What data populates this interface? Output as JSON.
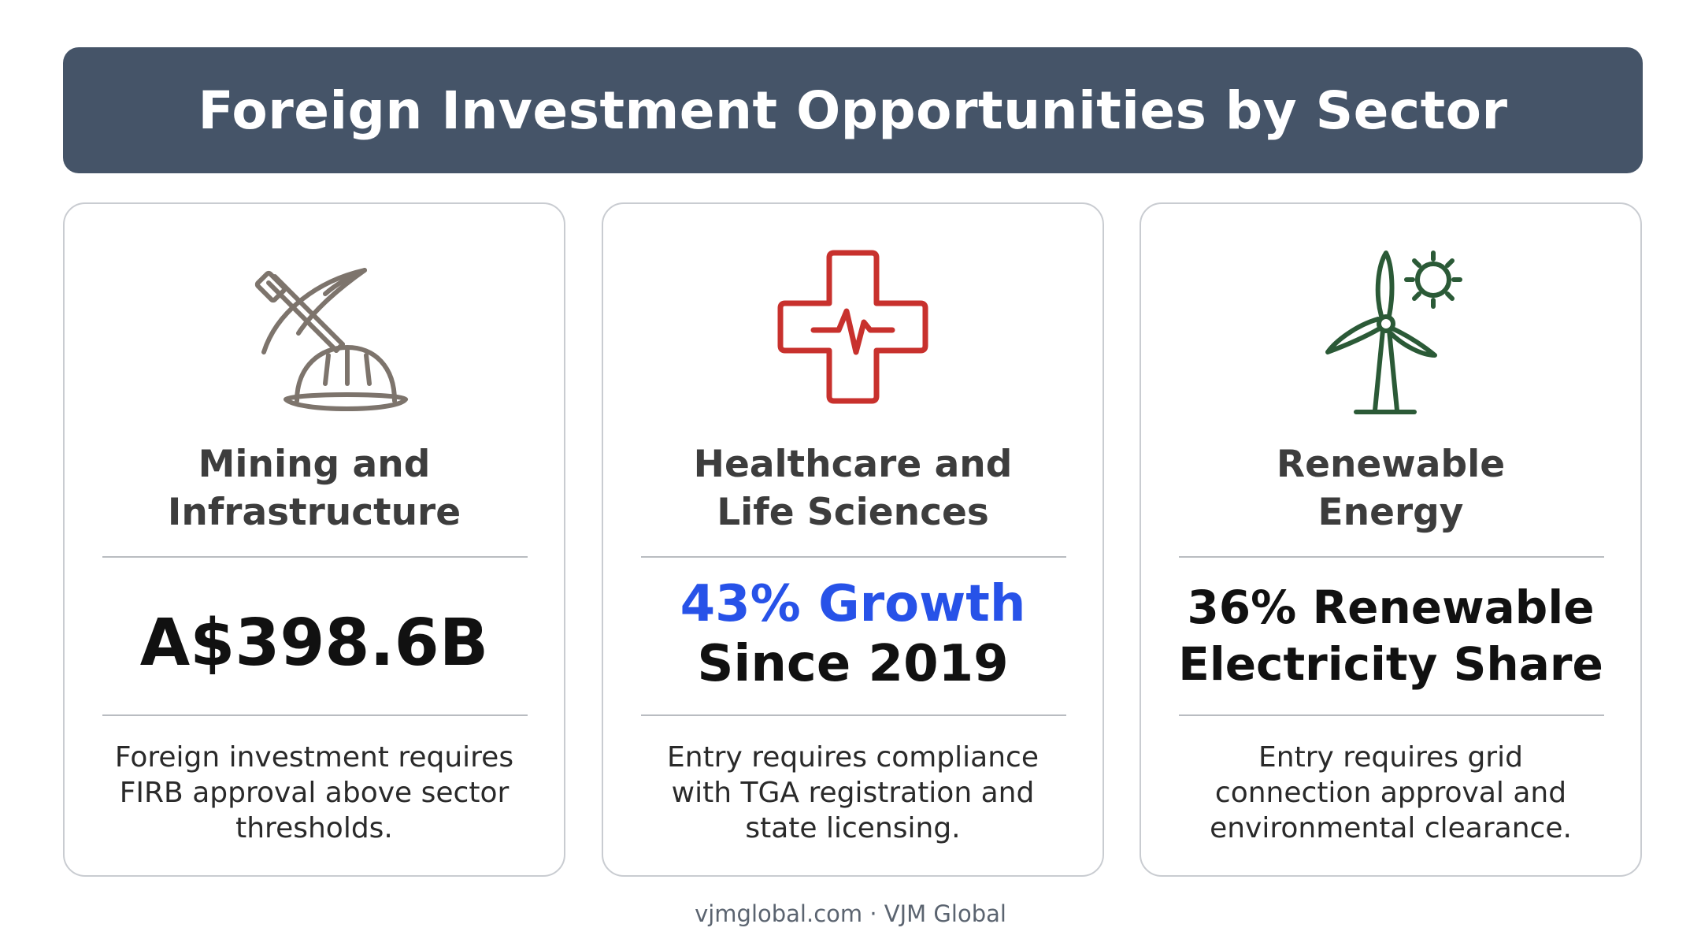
{
  "header": {
    "title": "Foreign Investment Opportunities by Sector"
  },
  "cards": [
    {
      "icon": "pickaxe-hardhat-icon",
      "icon_color": "#7d746c",
      "title_line1": "Mining and",
      "title_line2": "Infrastructure",
      "metric_line1": "A$398.6B",
      "desc_line1": "Foreign investment requires",
      "desc_line2": "FIRB approval above sector",
      "desc_line3": "thresholds."
    },
    {
      "icon": "medical-cross-heartbeat-icon",
      "icon_color": "#c8312d",
      "title_line1": "Healthcare and",
      "title_line2": "Life Sciences",
      "metric_line1": "43% Growth",
      "metric_line2": "Since 2019",
      "metric_accent_color": "#2752e8",
      "desc_line1": "Entry requires compliance",
      "desc_line2": "with TGA registration and",
      "desc_line3": "state licensing."
    },
    {
      "icon": "wind-turbine-sun-icon",
      "icon_color": "#2b5a37",
      "title_line1": "Renewable",
      "title_line2": "Energy",
      "metric_line1": "36% Renewable",
      "metric_line2": "Electricity Share",
      "desc_line1": "Entry requires grid",
      "desc_line2": "connection approval and",
      "desc_line3": "environmental clearance."
    }
  ],
  "footer": {
    "text": "vjmglobal.com · VJM Global"
  }
}
